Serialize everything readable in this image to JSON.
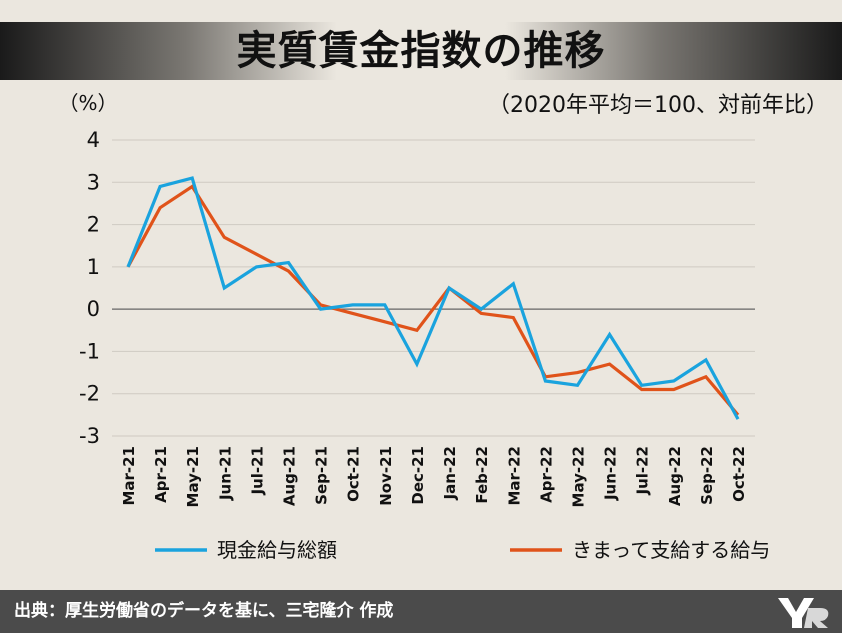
{
  "title": "実質賃金指数の推移",
  "subtitle": "（2020年平均＝100、対前年比）",
  "source": "出典：厚生労働省のデータを基に、三宅隆介 作成",
  "chart_data": {
    "type": "line",
    "ylabel": "（%）",
    "ylim": [
      -3,
      4
    ],
    "yticks": [
      "4",
      "3",
      "2",
      "1",
      "0",
      "-1",
      "-2",
      "-3"
    ],
    "categories": [
      "Mar-21",
      "Apr-21",
      "May-21",
      "Jun-21",
      "Jul-21",
      "Aug-21",
      "Sep-21",
      "Oct-21",
      "Nov-21",
      "Dec-21",
      "Jan-22",
      "Feb-22",
      "Mar-22",
      "Apr-22",
      "May-22",
      "Jun-22",
      "Jul-22",
      "Aug-22",
      "Sep-22",
      "Oct-22"
    ],
    "grid": true,
    "legend_position": "bottom",
    "series": [
      {
        "name": "現金給与総額",
        "color": "#1aa3de",
        "values": [
          1.0,
          2.9,
          3.1,
          0.5,
          1.0,
          1.1,
          0.0,
          0.1,
          0.1,
          -1.3,
          0.5,
          0.0,
          0.6,
          -1.7,
          -1.8,
          -0.6,
          -1.8,
          -1.7,
          -1.2,
          -2.6
        ]
      },
      {
        "name": "きまって支給する給与",
        "color": "#e0531a",
        "values": [
          1.0,
          2.4,
          2.9,
          1.7,
          1.3,
          0.9,
          0.1,
          -0.1,
          -0.3,
          -0.5,
          0.5,
          -0.1,
          -0.2,
          -1.6,
          -1.5,
          -1.3,
          -1.9,
          -1.9,
          -1.6,
          -2.5
        ]
      }
    ]
  }
}
